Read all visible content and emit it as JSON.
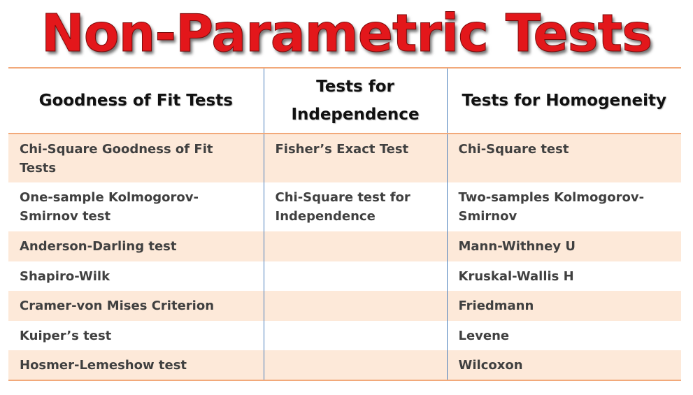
{
  "title": "Non-Parametric Tests",
  "table": {
    "headers": [
      "Goodness  of Fit Tests",
      "Tests for Independence",
      "Tests for Homogeneity"
    ],
    "rows": [
      [
        "Chi-Square Goodness of Fit Tests",
        "Fisher’s Exact Test",
        "Chi-Square test"
      ],
      [
        "One-sample Kolmogorov-Smirnov test",
        "Chi-Square test for Independence",
        "Two-samples Kolmogorov-Smirnov"
      ],
      [
        "Anderson-Darling test",
        "",
        "Mann-Withney U"
      ],
      [
        "Shapiro-Wilk",
        "",
        "Kruskal-Wallis H"
      ],
      [
        "Cramer-von Mises Criterion",
        "",
        "Friedmann"
      ],
      [
        "Kuiper’s test",
        "",
        "Levene"
      ],
      [
        "Hosmer-Lemeshow test",
        "",
        "Wilcoxon"
      ]
    ]
  },
  "colors": {
    "title": "#e3171b",
    "row_shade": "#fde9d9",
    "rule_orange": "#f2a97a",
    "rule_blue": "#4a7ebb",
    "cell_text": "#404040"
  }
}
